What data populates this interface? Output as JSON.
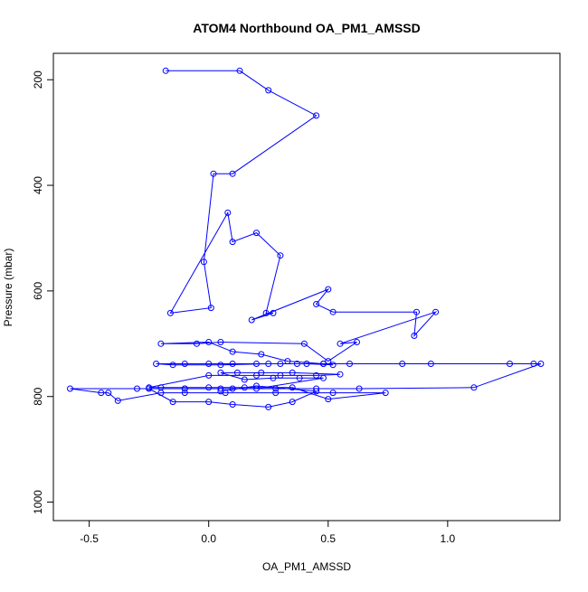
{
  "chart_data": {
    "type": "line",
    "title": "ATOM4 Northbound OA_PM1_AMSSD",
    "xlabel": "OA_PM1_AMSSD",
    "ylabel": "Pressure (mbar)",
    "xlim": [
      -0.65,
      1.47
    ],
    "ylim": [
      1035,
      150
    ],
    "y_reversed": true,
    "x_ticks": [
      -0.5,
      0.0,
      0.5,
      1.0
    ],
    "x_tick_labels": [
      "-0.5",
      "0.0",
      "0.5",
      "1.0"
    ],
    "y_ticks": [
      200,
      400,
      600,
      800,
      1000
    ],
    "y_tick_labels": [
      "200",
      "400",
      "600",
      "800",
      "1000"
    ],
    "series_color": "#0000ff",
    "grid": false,
    "series": [
      {
        "x": [
          -0.18,
          0.13,
          0.25,
          0.45,
          0.1,
          0.02,
          -0.02,
          0.01,
          -0.16,
          0.08,
          0.1,
          0.2,
          0.3,
          0.24,
          0.27,
          0.18,
          0.5,
          0.45,
          0.52,
          0.87,
          0.86,
          0.95,
          0.55,
          0.62,
          0.5,
          0.4,
          0.05,
          -0.05,
          -0.2,
          0.0,
          0.1,
          0.22,
          0.33,
          0.48,
          0.52,
          0.41,
          0.3,
          0.2,
          0.1,
          0.0,
          -0.1,
          -0.22,
          -0.15,
          0.05,
          0.25,
          0.37,
          0.48,
          0.59,
          0.81,
          0.93,
          1.26,
          1.36,
          1.39,
          1.11,
          0.63,
          0.45,
          0.28,
          0.1,
          -0.1,
          -0.3,
          -0.58,
          -0.45,
          -0.42,
          -0.38,
          -0.2,
          -0.1,
          0.07,
          0.28,
          0.52,
          0.74,
          0.5,
          0.35,
          0.15,
          0.0,
          -0.2,
          -0.25,
          0.0,
          0.2,
          0.3,
          0.45,
          0.55,
          0.35,
          0.22,
          0.12,
          0.05,
          0.15,
          0.27,
          0.38,
          0.48,
          0.2,
          0.05,
          -0.1,
          -0.25,
          -0.15,
          0.0,
          0.1,
          0.25,
          0.35,
          0.45,
          0.2,
          0.05
        ],
        "y": [
          183,
          183,
          220,
          268,
          378,
          378,
          545,
          632,
          642,
          452,
          507,
          490,
          533,
          642,
          642,
          655,
          597,
          625,
          640,
          640,
          685,
          640,
          700,
          697,
          733,
          700,
          697,
          700,
          700,
          697,
          715,
          720,
          733,
          738,
          740,
          738,
          738,
          738,
          738,
          738,
          738,
          738,
          740,
          740,
          738,
          738,
          738,
          738,
          738,
          738,
          738,
          738,
          738,
          783,
          785,
          785,
          785,
          785,
          785,
          785,
          785,
          793,
          793,
          808,
          793,
          793,
          793,
          793,
          793,
          793,
          805,
          783,
          783,
          783,
          783,
          783,
          760,
          760,
          760,
          760,
          758,
          755,
          755,
          755,
          755,
          768,
          765,
          765,
          765,
          785,
          785,
          785,
          785,
          810,
          810,
          815,
          820,
          810,
          790,
          780,
          790
        ]
      }
    ]
  }
}
